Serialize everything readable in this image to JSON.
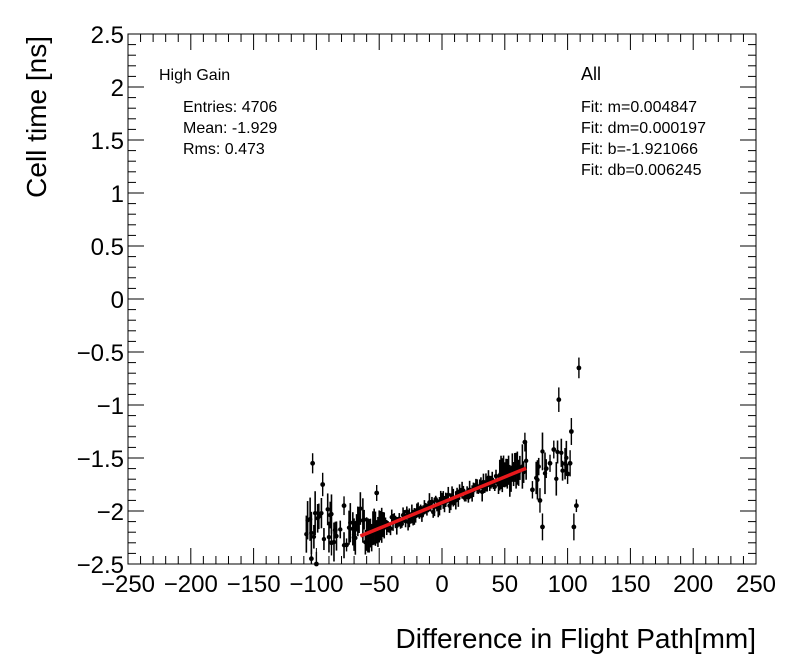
{
  "chart_data": {
    "type": "scatter",
    "title": "",
    "xlabel": "Difference in Flight Path[mm]",
    "ylabel": "Cell time [ns]",
    "xlim": [
      -250,
      250
    ],
    "ylim": [
      -2.5,
      2.5
    ],
    "x_ticks": [
      -250,
      -200,
      -150,
      -100,
      -50,
      0,
      50,
      100,
      150,
      200,
      250
    ],
    "x_tick_labels": [
      "−250",
      "−200",
      "−150",
      "−100",
      "−50",
      "0",
      "50",
      "100",
      "150",
      "200",
      "250"
    ],
    "y_ticks": [
      -2.5,
      -2,
      -1.5,
      -1,
      -0.5,
      0,
      0.5,
      1,
      1.5,
      2,
      2.5
    ],
    "y_tick_labels": [
      "−2.5",
      "−2",
      "−1.5",
      "−1",
      "−0.5",
      "0",
      "0.5",
      "1",
      "1.5",
      "2",
      "2.5"
    ],
    "stats_left": {
      "title": "High Gain",
      "entries": "Entries: 4706",
      "mean": "Mean: -1.929",
      "rms": "Rms: 0.473"
    },
    "stats_right": {
      "title": "All",
      "fit_m": "Fit: m=0.004847",
      "fit_dm": "Fit: dm=0.000197",
      "fit_b": "Fit: b=-1.921066",
      "fit_db": "Fit: db=0.006245"
    },
    "fit_line": {
      "m": 0.004847,
      "b": -1.921066,
      "x_range": [
        -65,
        67
      ],
      "color": "#e8191c"
    },
    "outliers": [
      [
        -103,
        -1.55
      ],
      [
        -98,
        -2.05
      ],
      [
        -95,
        -1.75
      ],
      [
        -88,
        -2.3
      ],
      [
        -85,
        -2.18
      ],
      [
        -78,
        -1.95
      ],
      [
        -76,
        -2.32
      ],
      [
        -70,
        -2.25
      ],
      [
        -52,
        -1.83
      ],
      [
        -104,
        -2.45
      ],
      [
        -100,
        -2.5
      ],
      [
        66,
        -1.35
      ],
      [
        72,
        -1.8
      ],
      [
        78,
        -1.9
      ],
      [
        80,
        -2.15
      ],
      [
        83,
        -1.6
      ],
      [
        86,
        -1.55
      ],
      [
        89,
        -1.42
      ],
      [
        93,
        -0.95
      ],
      [
        100,
        -1.65
      ],
      [
        102,
        -1.55
      ],
      [
        103,
        -1.25
      ],
      [
        105,
        -2.15
      ],
      [
        107,
        -1.95
      ],
      [
        109,
        -0.65
      ]
    ],
    "series_note": "binned profile, 1 mm bins from -110 to 110 with mean and error bars"
  }
}
